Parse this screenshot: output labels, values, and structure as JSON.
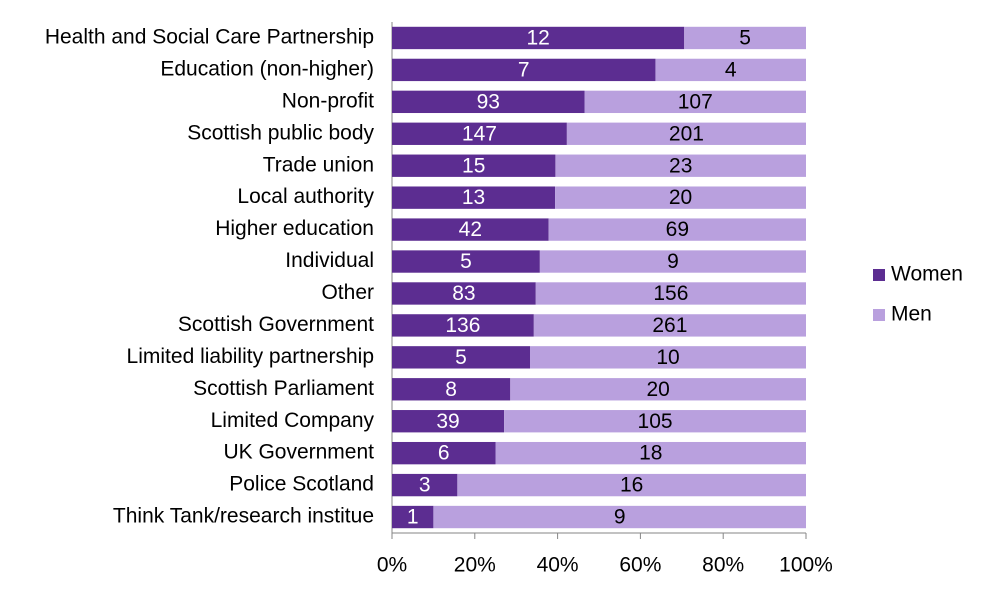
{
  "chart_data": {
    "type": "bar",
    "orientation": "horizontal",
    "stacked": "percent",
    "categories": [
      "Health and Social Care Partnership",
      "Education (non-higher)",
      "Non-profit",
      "Scottish public body",
      "Trade union",
      "Local authority",
      "Higher education",
      "Individual",
      "Other",
      "Scottish Government",
      "Limited liability partnership",
      "Scottish Parliament",
      "Limited Company",
      "UK Government",
      "Police Scotland",
      "Think Tank/research institue"
    ],
    "series": [
      {
        "name": "Women",
        "color": "#5c2d91",
        "label_color": "#ffffff",
        "values": [
          12,
          7,
          93,
          147,
          15,
          13,
          42,
          5,
          83,
          136,
          5,
          8,
          39,
          6,
          3,
          1
        ]
      },
      {
        "name": "Men",
        "color": "#b9a0de",
        "label_color": "#000000",
        "values": [
          5,
          4,
          107,
          201,
          23,
          20,
          69,
          9,
          156,
          261,
          10,
          20,
          105,
          18,
          16,
          9
        ]
      }
    ],
    "xlim": [
      0,
      100
    ],
    "xticks": [
      {
        "value": 0,
        "label": "0%"
      },
      {
        "value": 20,
        "label": "20%"
      },
      {
        "value": 40,
        "label": "40%"
      },
      {
        "value": 60,
        "label": "60%"
      },
      {
        "value": 80,
        "label": "80%"
      },
      {
        "value": 100,
        "label": "100%"
      }
    ],
    "legend": "right"
  }
}
